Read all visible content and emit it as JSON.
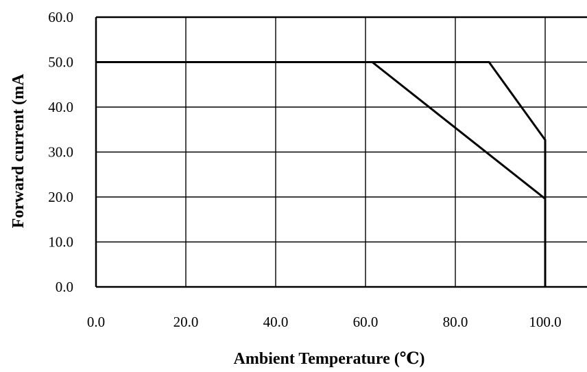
{
  "chart_data": {
    "type": "line",
    "title": "",
    "xlabel": "Ambient Temperature (℃)",
    "ylabel": "Forward current (mA",
    "xlim": [
      0,
      100
    ],
    "ylim": [
      0,
      60
    ],
    "x_ticks": [
      "0.0",
      "20.0",
      "40.0",
      "60.0",
      "80.0",
      "100.0"
    ],
    "y_ticks": [
      "0.0",
      "10.0",
      "20.0",
      "30.0",
      "40.0",
      "50.0",
      "60.0"
    ],
    "grid": true,
    "legend": "none",
    "series": [
      {
        "points": [
          [
            0,
            50
          ],
          [
            61.5,
            50
          ],
          [
            100,
            19.6
          ],
          [
            100,
            0
          ]
        ]
      },
      {
        "points": [
          [
            0,
            50
          ],
          [
            87.5,
            50
          ],
          [
            100,
            32.7
          ],
          [
            100,
            0
          ]
        ]
      }
    ]
  }
}
